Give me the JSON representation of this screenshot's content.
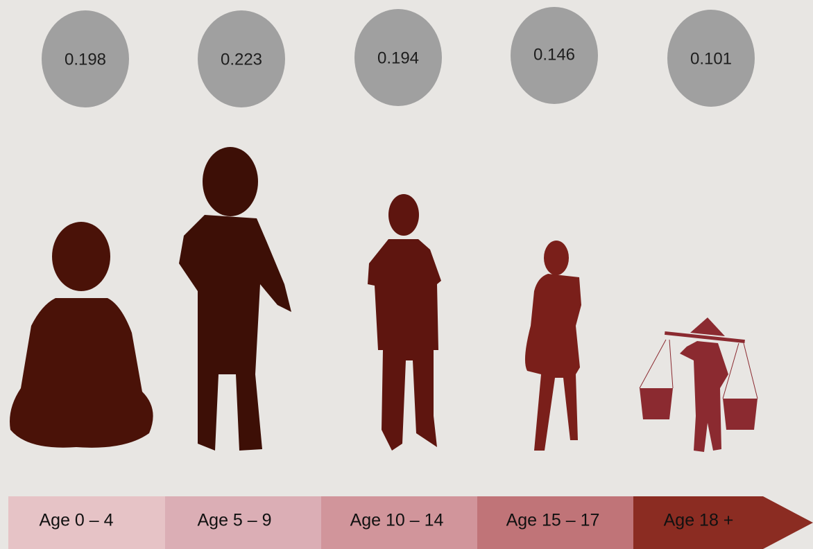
{
  "groups": [
    {
      "value": 0.198,
      "label": "Age 0 – 4"
    },
    {
      "value": 0.223,
      "label": "Age 5 – 9"
    },
    {
      "value": 0.194,
      "label": "Age 10 – 14"
    },
    {
      "value": 0.146,
      "label": "Age 15 – 17"
    },
    {
      "value": 0.101,
      "label": "Age 18 +"
    }
  ]
}
